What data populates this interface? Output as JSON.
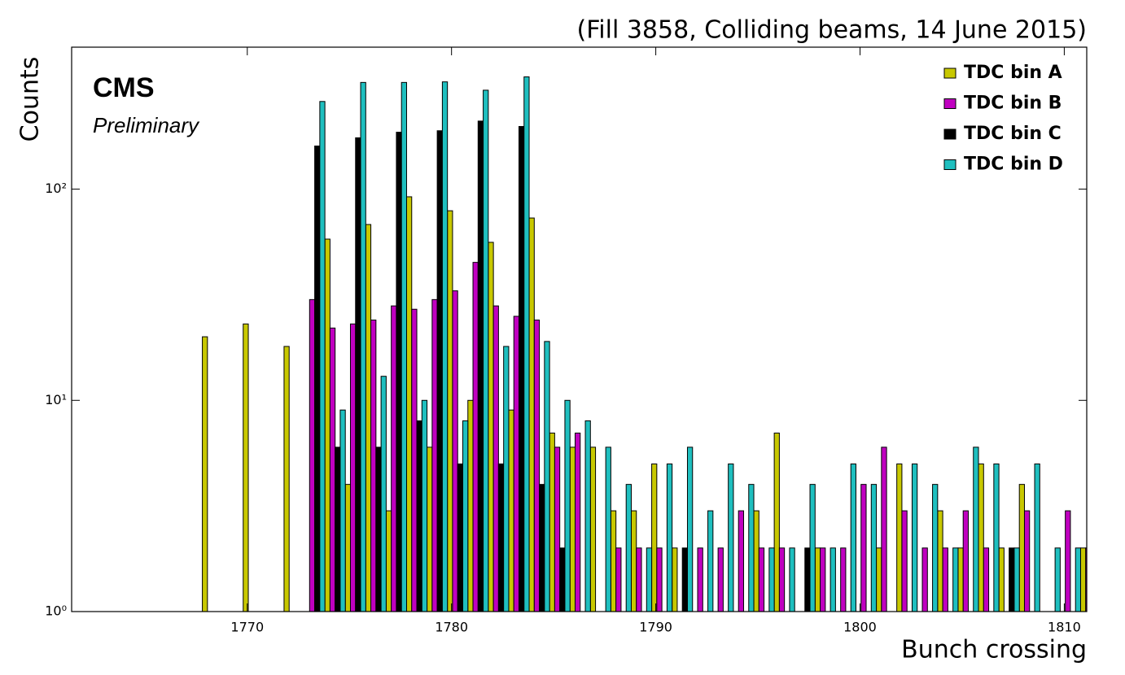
{
  "chart_data": {
    "type": "bar",
    "title": "(Fill 3858, Colliding beams, 14 June 2015)",
    "annotations": [
      "CMS",
      "Preliminary"
    ],
    "xlabel": "Bunch crossing",
    "ylabel": "Counts",
    "yscale": "log",
    "legend": "upper right",
    "x": [
      1768,
      1769,
      1770,
      1771,
      1772,
      1773,
      1774,
      1775,
      1776,
      1777,
      1778,
      1779,
      1780,
      1781,
      1782,
      1783,
      1784,
      1785,
      1786,
      1787,
      1788,
      1789,
      1790,
      1791,
      1792,
      1793,
      1794,
      1795,
      1796,
      1797,
      1798,
      1799,
      1800,
      1801,
      1802,
      1803,
      1804,
      1805,
      1806,
      1807,
      1808,
      1809,
      1810,
      1811
    ],
    "series": [
      {
        "name": "TDC bin A",
        "color": "#c8c800",
        "values": [
          20,
          null,
          23,
          null,
          18,
          null,
          58,
          4,
          68,
          3,
          92,
          6,
          79,
          10,
          56,
          9,
          73,
          7,
          6,
          6,
          3,
          3,
          5,
          2,
          null,
          null,
          null,
          3,
          7,
          null,
          2,
          null,
          null,
          2,
          5,
          null,
          3,
          2,
          5,
          2,
          4,
          null,
          null,
          2
        ]
      },
      {
        "name": "TDC bin B",
        "color": "#c000c0",
        "values": [
          null,
          null,
          null,
          null,
          null,
          30,
          22,
          23,
          24,
          28,
          27,
          30,
          33,
          45,
          28,
          25,
          24,
          6,
          7,
          null,
          2,
          2,
          2,
          null,
          2,
          2,
          3,
          2,
          2,
          null,
          2,
          2,
          4,
          6,
          3,
          2,
          2,
          3,
          2,
          null,
          3,
          null,
          3,
          2
        ]
      },
      {
        "name": "TDC bin C",
        "color": "#000000",
        "values": [
          null,
          null,
          null,
          null,
          null,
          160,
          6,
          175,
          6,
          186,
          8,
          189,
          5,
          210,
          5,
          198,
          4,
          2,
          null,
          null,
          null,
          null,
          null,
          2,
          null,
          null,
          null,
          null,
          null,
          2,
          null,
          null,
          null,
          null,
          null,
          null,
          null,
          null,
          null,
          2,
          null,
          null,
          null,
          null
        ]
      },
      {
        "name": "TDC bin D",
        "color": "#1fbfbf",
        "values": [
          null,
          null,
          null,
          null,
          null,
          260,
          9,
          320,
          13,
          320,
          10,
          322,
          8,
          294,
          18,
          340,
          19,
          10,
          8,
          6,
          4,
          2,
          5,
          6,
          3,
          5,
          4,
          2,
          2,
          4,
          2,
          5,
          4,
          null,
          5,
          4,
          2,
          6,
          5,
          2,
          5,
          2,
          2,
          null
        ]
      }
    ],
    "xlim": [
      1761.4,
      1811.1
    ],
    "xticks": [
      1770,
      1780,
      1790,
      1800,
      1810
    ],
    "ylim": [
      1,
      470
    ],
    "yticks": [
      {
        "value": 1,
        "label": "10⁰"
      },
      {
        "value": 10,
        "label": "10¹"
      },
      {
        "value": 100,
        "label": "10²"
      }
    ]
  }
}
